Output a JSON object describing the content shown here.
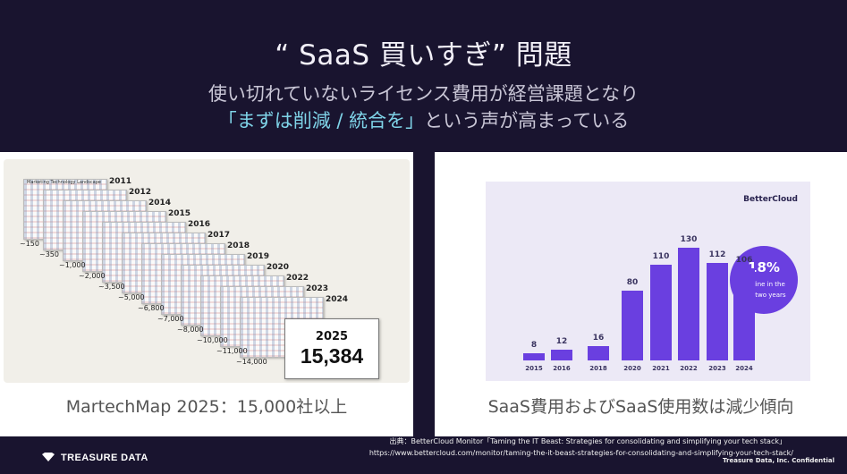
{
  "slide": {
    "title": "“ SaaS 買いすぎ” 問題",
    "subtitle_line1": "使い切れていないライセンス費用が経営課題となり",
    "subtitle_highlight": "「まずは削減 / 統合を」",
    "subtitle_line2_rest": "という声が高まっている"
  },
  "left_panel": {
    "caption": "MartechMap 2025：15,000社以上",
    "landscape_header": "Marketing Technology Landscape",
    "years": [
      "2011",
      "2012",
      "2014",
      "2015",
      "2016",
      "2017",
      "2018",
      "2019",
      "2020",
      "2022",
      "2023",
      "2024"
    ],
    "counts": [
      "~150",
      "~350",
      "~1,000",
      "~2,000",
      "~3,500",
      "~5,000",
      "~6,800",
      "~7,000",
      "~8,000",
      "~10,000",
      "~11,000",
      "~14,000"
    ],
    "highlight_year": "2025",
    "highlight_count": "15,384"
  },
  "right_panel": {
    "caption": "SaaS費用およびSaaS使用数は減少傾向",
    "brand": "BetterCloud",
    "badge_pct": "18%",
    "badge_text_line1": "decline in the",
    "badge_text_line2": "last two years",
    "accent_color": "#6a3fe0"
  },
  "chart_data": {
    "type": "bar",
    "categories": [
      "2015",
      "2016",
      "2018",
      "2020",
      "2021",
      "2022",
      "2023",
      "2024"
    ],
    "values": [
      8,
      12,
      16,
      80,
      110,
      130,
      112,
      106
    ],
    "ylim": [
      0,
      130
    ]
  },
  "footer": {
    "logo_text": "TREASURE DATA",
    "source_line1": "出典：BetterCloud Monitor「Taming the IT Beast: Strategies for consolidating and simplifying your tech stack」",
    "source_line2": "https://www.bettercloud.com/monitor/taming-the-it-beast-strategies-for-consolidating-and-simplifying-your-tech-stack/",
    "confidential": "Treasure Data, Inc. Confidential"
  }
}
